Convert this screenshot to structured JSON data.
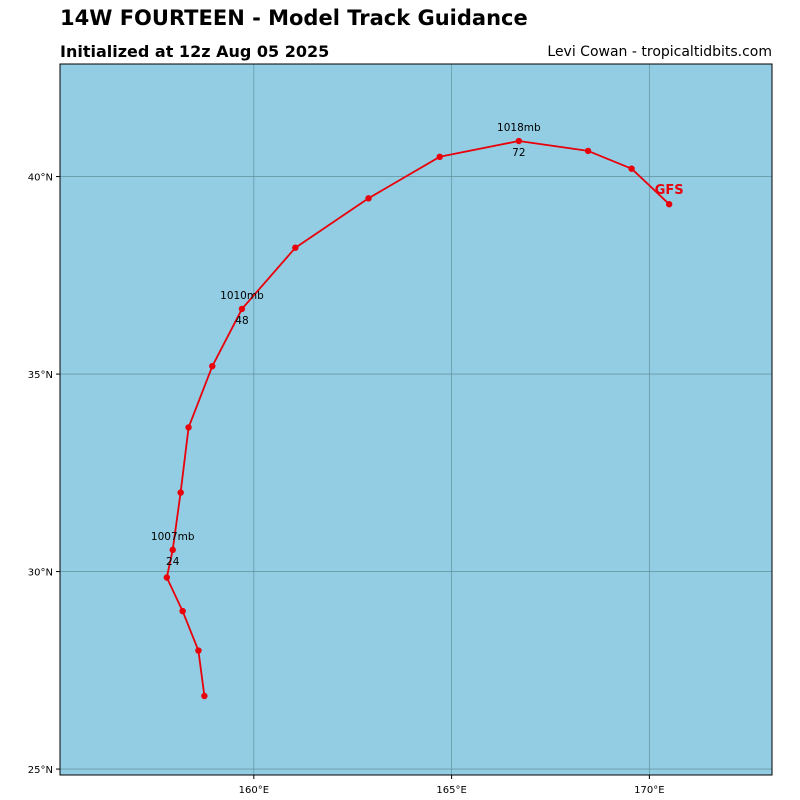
{
  "header": {
    "title": "14W FOURTEEN - Model Track Guidance",
    "subtitle": "Initialized at 12z Aug 05 2025",
    "credit": "Levi Cowan - tropicaltidbits.com"
  },
  "colors": {
    "ocean": "#93cde3",
    "grid": "#5c8c96",
    "track": "#e8000b",
    "label": "#000000"
  },
  "chart_data": {
    "type": "line",
    "x_range": [
      155.1,
      173.1
    ],
    "y_range": [
      24.85,
      42.85
    ],
    "lon_ticks": [
      {
        "value": 160,
        "label": "160°E"
      },
      {
        "value": 165,
        "label": "165°E"
      },
      {
        "value": 170,
        "label": "170°E"
      }
    ],
    "lat_ticks": [
      {
        "value": 25,
        "label": "25°N"
      },
      {
        "value": 30,
        "label": "30°N"
      },
      {
        "value": 35,
        "label": "35°N"
      },
      {
        "value": 40,
        "label": "40°N"
      }
    ],
    "grid": true,
    "series": [
      {
        "name": "GFS",
        "points": [
          {
            "lon": 158.75,
            "lat": 26.85
          },
          {
            "lon": 158.6,
            "lat": 28.0
          },
          {
            "lon": 158.2,
            "lat": 29.0
          },
          {
            "lon": 157.8,
            "lat": 29.85
          },
          {
            "lon": 157.95,
            "lat": 30.55
          },
          {
            "lon": 158.15,
            "lat": 32.0
          },
          {
            "lon": 158.35,
            "lat": 33.65
          },
          {
            "lon": 158.95,
            "lat": 35.2
          },
          {
            "lon": 159.7,
            "lat": 36.65
          },
          {
            "lon": 161.05,
            "lat": 38.2
          },
          {
            "lon": 162.9,
            "lat": 39.45
          },
          {
            "lon": 164.7,
            "lat": 40.5
          },
          {
            "lon": 166.7,
            "lat": 40.9
          },
          {
            "lon": 168.45,
            "lat": 40.65
          },
          {
            "lon": 169.55,
            "lat": 40.2
          },
          {
            "lon": 170.5,
            "lat": 39.3
          }
        ]
      }
    ],
    "annotations": [
      {
        "point": 4,
        "pressure": "1007mb",
        "hour": "24"
      },
      {
        "point": 8,
        "pressure": "1010mb",
        "hour": "48"
      },
      {
        "point": 12,
        "pressure": "1018mb",
        "hour": "72"
      }
    ],
    "model_label": {
      "text": "GFS",
      "point": 15
    }
  }
}
